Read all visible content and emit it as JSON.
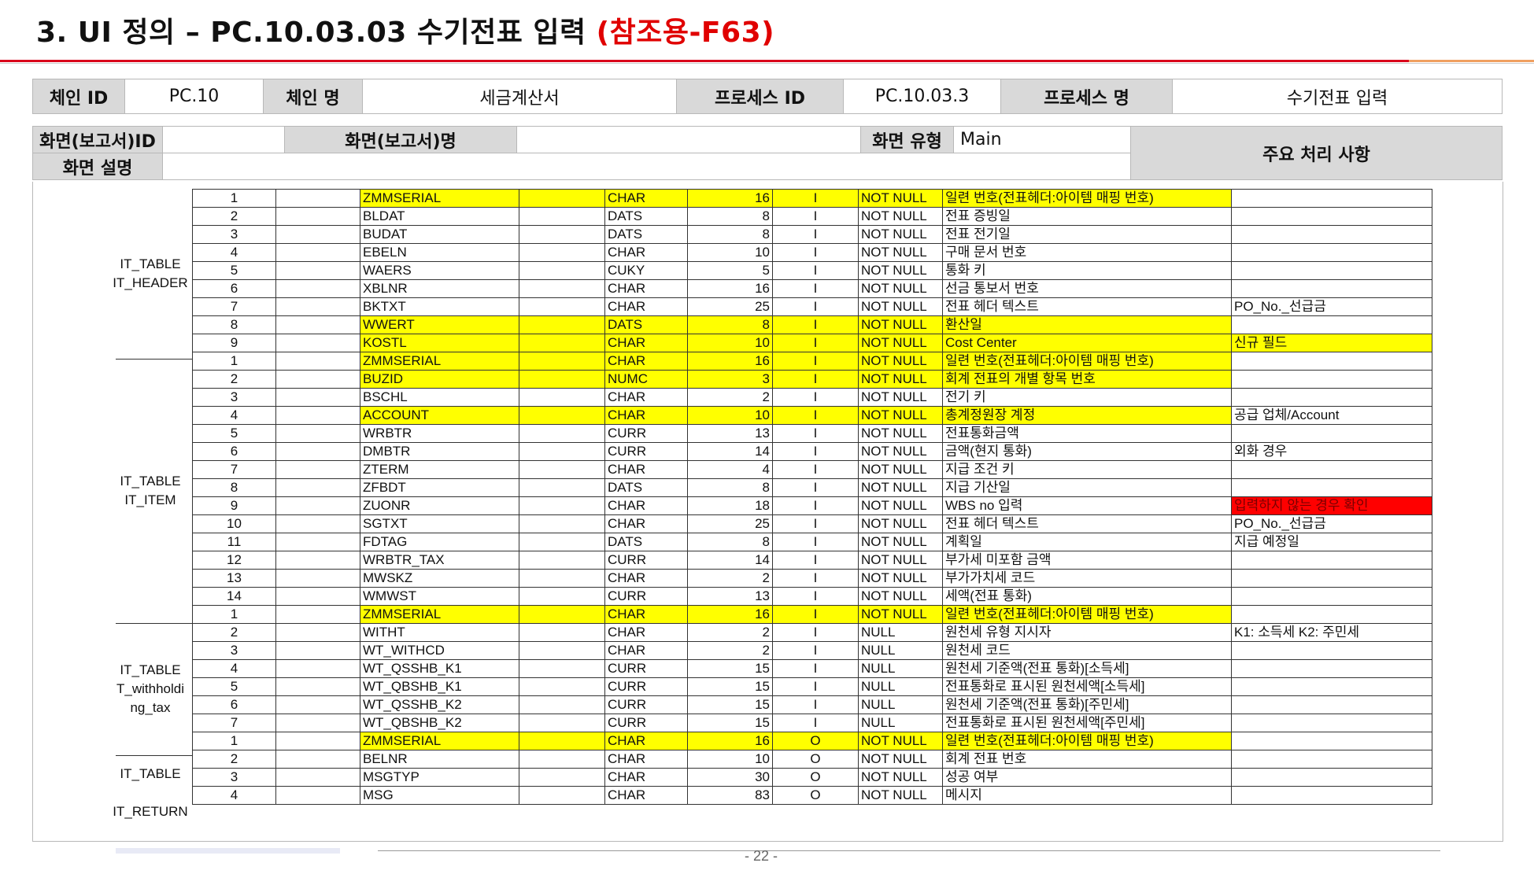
{
  "title": {
    "main": "3. UI 정의 – PC.10.03.03 수기전표 입력 ",
    "ref": "(참조용-F63)"
  },
  "header": {
    "chain_id_label": "체인 ID",
    "chain_id": "PC.10",
    "chain_name_label": "체인 명",
    "chain_name": "세금계산서",
    "process_id_label": "프로세스 ID",
    "process_id": "PC.10.03.3",
    "process_name_label": "프로세스 명",
    "process_name": "수기전표 입력"
  },
  "screen": {
    "id_label": "화면(보고서)ID",
    "id": "",
    "name_label": "화면(보고서)명",
    "name": "",
    "type_label": "화면 유형",
    "type": "Main",
    "desc_label": "화면 설명",
    "desc": "",
    "main_processing_label": "주요 처리 사항"
  },
  "colors": {
    "highlight": "#ffff00",
    "alert": "#ff0000",
    "accent": "#d9001b"
  },
  "groups": [
    {
      "label_lines": [
        "IT_TABLE",
        "IT_HEADER"
      ],
      "rows": [
        {
          "no": "1",
          "field": "ZMMSERIAL",
          "type": "CHAR",
          "len": "16",
          "io": "I",
          "nullable": "NOT NULL",
          "desc": "일련 번호(전표헤더:아이템 매핑 번호)",
          "note": "",
          "hl": true
        },
        {
          "no": "2",
          "field": "BLDAT",
          "type": "DATS",
          "len": "8",
          "io": "I",
          "nullable": "NOT NULL",
          "desc": "전표 증빙일",
          "note": "",
          "hl": false
        },
        {
          "no": "3",
          "field": "BUDAT",
          "type": "DATS",
          "len": "8",
          "io": "I",
          "nullable": "NOT NULL",
          "desc": "전표 전기일",
          "note": "",
          "hl": false
        },
        {
          "no": "4",
          "field": "EBELN",
          "type": "CHAR",
          "len": "10",
          "io": "I",
          "nullable": "NOT NULL",
          "desc": "구매 문서 번호",
          "note": "",
          "hl": false
        },
        {
          "no": "5",
          "field": "WAERS",
          "type": "CUKY",
          "len": "5",
          "io": "I",
          "nullable": "NOT NULL",
          "desc": "통화 키",
          "note": "",
          "hl": false
        },
        {
          "no": "6",
          "field": "XBLNR",
          "type": "CHAR",
          "len": "16",
          "io": "I",
          "nullable": "NOT NULL",
          "desc": "선금 통보서 번호",
          "note": "",
          "hl": false
        },
        {
          "no": "7",
          "field": "BKTXT",
          "type": "CHAR",
          "len": "25",
          "io": "I",
          "nullable": "NOT NULL",
          "desc": "전표 헤더 텍스트",
          "note": "PO_No._선급금",
          "hl": false
        },
        {
          "no": "8",
          "field": "WWERT",
          "type": "DATS",
          "len": "8",
          "io": "I",
          "nullable": "NOT NULL",
          "desc": "환산일",
          "note": "",
          "hl": true
        },
        {
          "no": "9",
          "field": "KOSTL",
          "type": "CHAR",
          "len": "10",
          "io": "I",
          "nullable": "NOT NULL",
          "desc": "Cost Center",
          "note": "신규 필드",
          "hl": true,
          "note_hl": true
        }
      ]
    },
    {
      "label_lines": [
        "IT_TABLE",
        "IT_ITEM"
      ],
      "rows": [
        {
          "no": "1",
          "field": "ZMMSERIAL",
          "type": "CHAR",
          "len": "16",
          "io": "I",
          "nullable": "NOT NULL",
          "desc": "일련 번호(전표헤더:아이템 매핑 번호)",
          "note": "",
          "hl": true
        },
        {
          "no": "2",
          "field": "BUZID",
          "type": "NUMC",
          "len": "3",
          "io": "I",
          "nullable": "NOT NULL",
          "desc": "회계 전표의 개별 항목 번호",
          "note": "",
          "hl": true
        },
        {
          "no": "3",
          "field": "BSCHL",
          "type": "CHAR",
          "len": "2",
          "io": "I",
          "nullable": "NOT NULL",
          "desc": "전기 키",
          "note": "",
          "hl": false
        },
        {
          "no": "4",
          "field": "ACCOUNT",
          "type": "CHAR",
          "len": "10",
          "io": "I",
          "nullable": "NOT NULL",
          "desc": "총계정원장 계정",
          "note": "공급 업체/Account",
          "hl": true
        },
        {
          "no": "5",
          "field": "WRBTR",
          "type": "CURR",
          "len": "13",
          "io": "I",
          "nullable": "NOT NULL",
          "desc": "전표통화금액",
          "note": "",
          "hl": false
        },
        {
          "no": "6",
          "field": "DMBTR",
          "type": "CURR",
          "len": "14",
          "io": "I",
          "nullable": "NOT NULL",
          "desc": "금액(현지 통화)",
          "note": "외화 경우",
          "hl": false
        },
        {
          "no": "7",
          "field": "ZTERM",
          "type": "CHAR",
          "len": "4",
          "io": "I",
          "nullable": "NOT NULL",
          "desc": "지급 조건 키",
          "note": "",
          "hl": false
        },
        {
          "no": "8",
          "field": "ZFBDT",
          "type": "DATS",
          "len": "8",
          "io": "I",
          "nullable": "NOT NULL",
          "desc": "지급 기산일",
          "note": "",
          "hl": false
        },
        {
          "no": "9",
          "field": "ZUONR",
          "type": "CHAR",
          "len": "18",
          "io": "I",
          "nullable": "NOT NULL",
          "desc": "WBS no 입력",
          "note": "입력하지 않는 경우 확인",
          "hl": false,
          "note_red": true
        },
        {
          "no": "10",
          "field": "SGTXT",
          "type": "CHAR",
          "len": "25",
          "io": "I",
          "nullable": "NOT NULL",
          "desc": "전표 헤더 텍스트",
          "note": "PO_No._선급금",
          "hl": false
        },
        {
          "no": "11",
          "field": "FDTAG",
          "type": "DATS",
          "len": "8",
          "io": "I",
          "nullable": "NOT NULL",
          "desc": "계획일",
          "note": "지급 예정일",
          "hl": false
        },
        {
          "no": "12",
          "field": "WRBTR_TAX",
          "type": "CURR",
          "len": "14",
          "io": "I",
          "nullable": "NOT NULL",
          "desc": "부가세 미포함 금액",
          "note": "",
          "hl": false
        },
        {
          "no": "13",
          "field": "MWSKZ",
          "type": "CHAR",
          "len": "2",
          "io": "I",
          "nullable": "NOT NULL",
          "desc": "부가가치세 코드",
          "note": "",
          "hl": false
        },
        {
          "no": "14",
          "field": "WMWST",
          "type": "CURR",
          "len": "13",
          "io": "I",
          "nullable": "NOT NULL",
          "desc": "세액(전표 통화)",
          "note": "",
          "hl": false
        }
      ]
    },
    {
      "label_lines": [
        "IT_TABLE",
        "T_withholdi",
        "ng_tax"
      ],
      "rows": [
        {
          "no": "1",
          "field": "ZMMSERIAL",
          "type": "CHAR",
          "len": "16",
          "io": "I",
          "nullable": "NOT NULL",
          "desc": "일련 번호(전표헤더:아이템 매핑 번호)",
          "note": "",
          "hl": true
        },
        {
          "no": "2",
          "field": "WITHT",
          "type": "CHAR",
          "len": "2",
          "io": "I",
          "nullable": "NULL",
          "desc": "원천세 유형 지시자",
          "note": "K1: 소득세 K2: 주민세",
          "hl": false
        },
        {
          "no": "3",
          "field": "WT_WITHCD",
          "type": "CHAR",
          "len": "2",
          "io": "I",
          "nullable": "NULL",
          "desc": "원천세 코드",
          "note": "",
          "hl": false
        },
        {
          "no": "4",
          "field": "WT_QSSHB_K1",
          "type": "CURR",
          "len": "15",
          "io": "I",
          "nullable": "NULL",
          "desc": "원천세 기준액(전표 통화)[소득세]",
          "note": "",
          "hl": false
        },
        {
          "no": "5",
          "field": "WT_QBSHB_K1",
          "type": "CURR",
          "len": "15",
          "io": "I",
          "nullable": "NULL",
          "desc": "전표통화로 표시된 원천세액[소득세]",
          "note": "",
          "hl": false
        },
        {
          "no": "6",
          "field": "WT_QSSHB_K2",
          "type": "CURR",
          "len": "15",
          "io": "I",
          "nullable": "NULL",
          "desc": "원천세 기준액(전표 통화)[주민세]",
          "note": "",
          "hl": false
        },
        {
          "no": "7",
          "field": "WT_QBSHB_K2",
          "type": "CURR",
          "len": "15",
          "io": "I",
          "nullable": "NULL",
          "desc": "전표통화로 표시된 원천세액[주민세]",
          "note": "",
          "hl": false
        }
      ]
    },
    {
      "label_lines": [
        "IT_TABLE",
        "",
        "IT_RETURN"
      ],
      "rows": [
        {
          "no": "1",
          "field": "ZMMSERIAL",
          "type": "CHAR",
          "len": "16",
          "io": "O",
          "nullable": "NOT NULL",
          "desc": "일련 번호(전표헤더:아이템 매핑 번호)",
          "note": "",
          "hl": true
        },
        {
          "no": "2",
          "field": "BELNR",
          "type": "CHAR",
          "len": "10",
          "io": "O",
          "nullable": "NOT NULL",
          "desc": "회계 전표 번호",
          "note": "",
          "hl": false
        },
        {
          "no": "3",
          "field": "MSGTYP",
          "type": "CHAR",
          "len": "30",
          "io": "O",
          "nullable": "NOT NULL",
          "desc": "성공 여부",
          "note": "",
          "hl": false
        },
        {
          "no": "4",
          "field": "MSG",
          "type": "CHAR",
          "len": "83",
          "io": "O",
          "nullable": "NOT NULL",
          "desc": "메시지",
          "note": "",
          "hl": false
        }
      ]
    }
  ],
  "page_number": "- 22 -"
}
